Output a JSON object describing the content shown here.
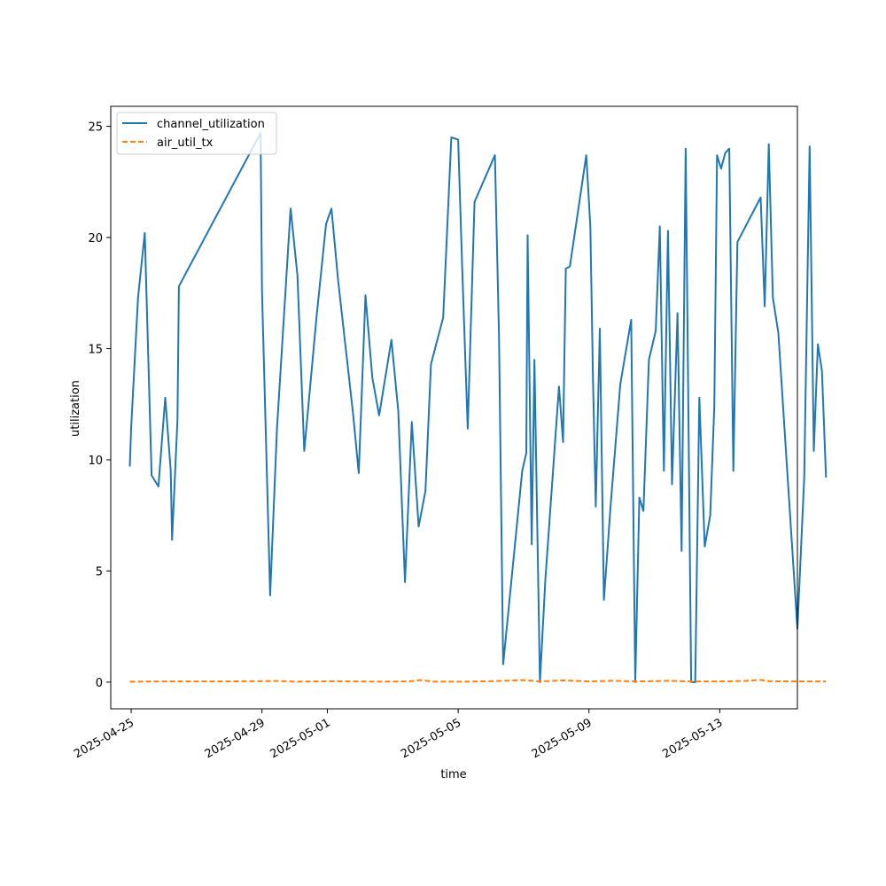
{
  "chart_data": {
    "type": "line",
    "xlabel": "time",
    "ylabel": "utilization",
    "x_axis_type": "date",
    "xlim": [
      "2025-04-24T09:00",
      "2025-05-15T09:00"
    ],
    "ylim": [
      -1.2,
      25.9
    ],
    "x_ticks": [
      "2025-04-25",
      "2025-04-29",
      "2025-05-01",
      "2025-05-05",
      "2025-05-09",
      "2025-05-13"
    ],
    "y_ticks": [
      0,
      5,
      10,
      15,
      20,
      25
    ],
    "grid": false,
    "legend_position": "top-left",
    "series": [
      {
        "name": "channel_utilization",
        "color": "#1f77b4",
        "style": "solid",
        "points": [
          [
            "2025-04-24T23:00",
            9.7
          ],
          [
            "2025-04-25T00:00",
            11.5
          ],
          [
            "2025-04-25T05:00",
            17.3
          ],
          [
            "2025-04-25T10:00",
            20.2
          ],
          [
            "2025-04-25T15:00",
            9.3
          ],
          [
            "2025-04-25T20:00",
            8.8
          ],
          [
            "2025-04-26T01:00",
            12.8
          ],
          [
            "2025-04-26T05:00",
            9.5
          ],
          [
            "2025-04-26T06:00",
            6.4
          ],
          [
            "2025-04-26T10:00",
            11.8
          ],
          [
            "2025-04-26T11:00",
            17.8
          ],
          [
            "2025-04-28T23:00",
            24.7
          ],
          [
            "2025-04-29T00:00",
            17.6
          ],
          [
            "2025-04-29T06:00",
            3.9
          ],
          [
            "2025-04-29T11:00",
            11.4
          ],
          [
            "2025-04-29T21:00",
            21.3
          ],
          [
            "2025-04-30T02:00",
            18.3
          ],
          [
            "2025-04-30T07:00",
            10.4
          ],
          [
            "2025-04-30T16:00",
            16.4
          ],
          [
            "2025-04-30T23:00",
            20.6
          ],
          [
            "2025-05-01T03:00",
            21.3
          ],
          [
            "2025-05-01T08:00",
            18.0
          ],
          [
            "2025-05-01T19:00",
            12.0
          ],
          [
            "2025-05-01T23:00",
            9.4
          ],
          [
            "2025-05-02T04:00",
            17.4
          ],
          [
            "2025-05-02T09:00",
            13.7
          ],
          [
            "2025-05-02T14:00",
            12.0
          ],
          [
            "2025-05-02T23:00",
            15.4
          ],
          [
            "2025-05-03T04:00",
            12.2
          ],
          [
            "2025-05-03T09:00",
            4.5
          ],
          [
            "2025-05-03T11:00",
            7.4
          ],
          [
            "2025-05-03T14:00",
            11.7
          ],
          [
            "2025-05-03T19:00",
            7.0
          ],
          [
            "2025-05-04T00:00",
            8.6
          ],
          [
            "2025-05-04T04:00",
            14.3
          ],
          [
            "2025-05-04T13:00",
            16.4
          ],
          [
            "2025-05-04T19:00",
            24.5
          ],
          [
            "2025-05-05T00:00",
            24.4
          ],
          [
            "2025-05-05T03:00",
            18.6
          ],
          [
            "2025-05-05T07:00",
            11.4
          ],
          [
            "2025-05-05T12:00",
            21.6
          ],
          [
            "2025-05-06T03:00",
            23.7
          ],
          [
            "2025-05-06T06:00",
            15.6
          ],
          [
            "2025-05-06T09:00",
            0.8
          ],
          [
            "2025-05-06T23:00",
            9.5
          ],
          [
            "2025-05-07T02:00",
            10.3
          ],
          [
            "2025-05-07T03:00",
            20.1
          ],
          [
            "2025-05-07T06:00",
            6.2
          ],
          [
            "2025-05-07T08:00",
            14.5
          ],
          [
            "2025-05-07T12:00",
            0.0
          ],
          [
            "2025-05-07T16:00",
            4.6
          ],
          [
            "2025-05-08T02:00",
            13.3
          ],
          [
            "2025-05-08T05:00",
            10.8
          ],
          [
            "2025-05-08T07:00",
            18.6
          ],
          [
            "2025-05-08T10:00",
            18.7
          ],
          [
            "2025-05-08T22:00",
            23.7
          ],
          [
            "2025-05-09T01:00",
            20.5
          ],
          [
            "2025-05-09T03:00",
            13.6
          ],
          [
            "2025-05-09T05:00",
            7.9
          ],
          [
            "2025-05-09T08:00",
            15.9
          ],
          [
            "2025-05-09T11:00",
            3.7
          ],
          [
            "2025-05-09T16:00",
            8.0
          ],
          [
            "2025-05-09T23:00",
            13.4
          ],
          [
            "2025-05-10T07:00",
            16.3
          ],
          [
            "2025-05-10T10:00",
            0.0
          ],
          [
            "2025-05-10T13:00",
            8.3
          ],
          [
            "2025-05-10T16:00",
            7.7
          ],
          [
            "2025-05-10T20:00",
            14.5
          ],
          [
            "2025-05-11T01:00",
            15.8
          ],
          [
            "2025-05-11T04:00",
            20.5
          ],
          [
            "2025-05-11T07:00",
            9.5
          ],
          [
            "2025-05-11T10:00",
            20.3
          ],
          [
            "2025-05-11T13:00",
            8.9
          ],
          [
            "2025-05-11T17:00",
            16.6
          ],
          [
            "2025-05-11T20:00",
            5.9
          ],
          [
            "2025-05-11T23:00",
            24.0
          ],
          [
            "2025-05-12T03:00",
            0.0
          ],
          [
            "2025-05-12T06:00",
            0.0
          ],
          [
            "2025-05-12T09:00",
            12.8
          ],
          [
            "2025-05-12T13:00",
            6.1
          ],
          [
            "2025-05-12T17:00",
            7.5
          ],
          [
            "2025-05-12T20:00",
            12.4
          ],
          [
            "2025-05-12T22:00",
            23.7
          ],
          [
            "2025-05-13T01:00",
            23.1
          ],
          [
            "2025-05-13T04:00",
            23.8
          ],
          [
            "2025-05-13T07:00",
            24.0
          ],
          [
            "2025-05-13T10:00",
            9.5
          ],
          [
            "2025-05-13T13:00",
            19.8
          ],
          [
            "2025-05-14T06:00",
            21.8
          ],
          [
            "2025-05-14T09:00",
            16.9
          ],
          [
            "2025-05-14T12:00",
            24.2
          ],
          [
            "2025-05-14T15:00",
            17.3
          ],
          [
            "2025-05-14T19:00",
            15.7
          ],
          [
            "2025-05-15T09:00",
            2.4
          ],
          [
            "2025-05-15T14:00",
            9.2
          ],
          [
            "2025-05-15T18:00",
            24.1
          ],
          [
            "2025-05-15T21:00",
            10.4
          ],
          [
            "2025-05-16T00:00",
            15.2
          ],
          [
            "2025-05-16T03:00",
            14.0
          ],
          [
            "2025-05-16T06:00",
            9.2
          ]
        ]
      },
      {
        "name": "air_util_tx",
        "color": "#ff7f0e",
        "style": "dashed",
        "points": [
          [
            "2025-04-24T23:00",
            0.02
          ],
          [
            "2025-04-26T00:00",
            0.03
          ],
          [
            "2025-04-28T00:00",
            0.03
          ],
          [
            "2025-04-29T12:00",
            0.05
          ],
          [
            "2025-04-30T00:00",
            0.02
          ],
          [
            "2025-05-01T06:00",
            0.04
          ],
          [
            "2025-05-02T12:00",
            0.02
          ],
          [
            "2025-05-03T12:00",
            0.03
          ],
          [
            "2025-05-03T20:00",
            0.09
          ],
          [
            "2025-05-04T06:00",
            0.02
          ],
          [
            "2025-05-05T06:00",
            0.02
          ],
          [
            "2025-05-06T06:00",
            0.05
          ],
          [
            "2025-05-07T00:00",
            0.09
          ],
          [
            "2025-05-07T12:00",
            0.03
          ],
          [
            "2025-05-08T06:00",
            0.08
          ],
          [
            "2025-05-09T00:00",
            0.03
          ],
          [
            "2025-05-09T18:00",
            0.06
          ],
          [
            "2025-05-10T12:00",
            0.03
          ],
          [
            "2025-05-11T12:00",
            0.06
          ],
          [
            "2025-05-12T00:00",
            0.03
          ],
          [
            "2025-05-13T00:00",
            0.03
          ],
          [
            "2025-05-13T18:00",
            0.05
          ],
          [
            "2025-05-14T06:00",
            0.1
          ],
          [
            "2025-05-14T12:00",
            0.04
          ],
          [
            "2025-05-15T12:00",
            0.03
          ],
          [
            "2025-05-16T06:00",
            0.03
          ]
        ]
      }
    ]
  }
}
